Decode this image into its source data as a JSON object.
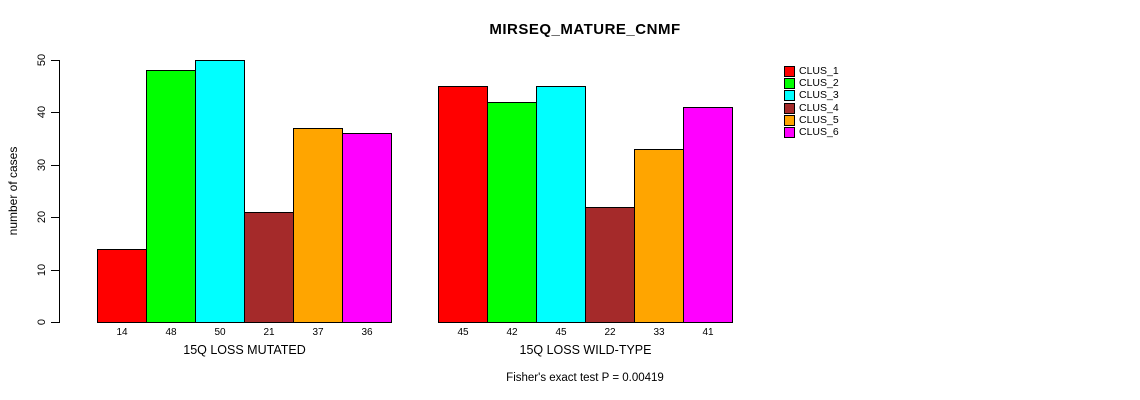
{
  "title": "MIRSEQ_MATURE_CNMF",
  "footer": "Fisher's exact test P = 0.00419",
  "chart_data": {
    "type": "bar",
    "title": "MIRSEQ_MATURE_CNMF",
    "xlabel": "",
    "ylabel": "number of cases",
    "ylim": [
      0,
      50
    ],
    "yticks": [
      0,
      10,
      20,
      30,
      40,
      50
    ],
    "grid": false,
    "legend_position": "right",
    "series": [
      {
        "name": "CLUS_1",
        "color": "#FF0000"
      },
      {
        "name": "CLUS_2",
        "color": "#00FF00"
      },
      {
        "name": "CLUS_3",
        "color": "#00FFFF"
      },
      {
        "name": "CLUS_4",
        "color": "#A52A2A"
      },
      {
        "name": "CLUS_5",
        "color": "#FFA500"
      },
      {
        "name": "CLUS_6",
        "color": "#FF00FF"
      }
    ],
    "groups": [
      {
        "label": "15Q LOSS MUTATED",
        "values": [
          14,
          48,
          50,
          21,
          37,
          36
        ]
      },
      {
        "label": "15Q LOSS WILD-TYPE",
        "values": [
          45,
          42,
          45,
          22,
          33,
          41
        ]
      }
    ],
    "annotation": "Fisher's exact test P = 0.00419"
  }
}
